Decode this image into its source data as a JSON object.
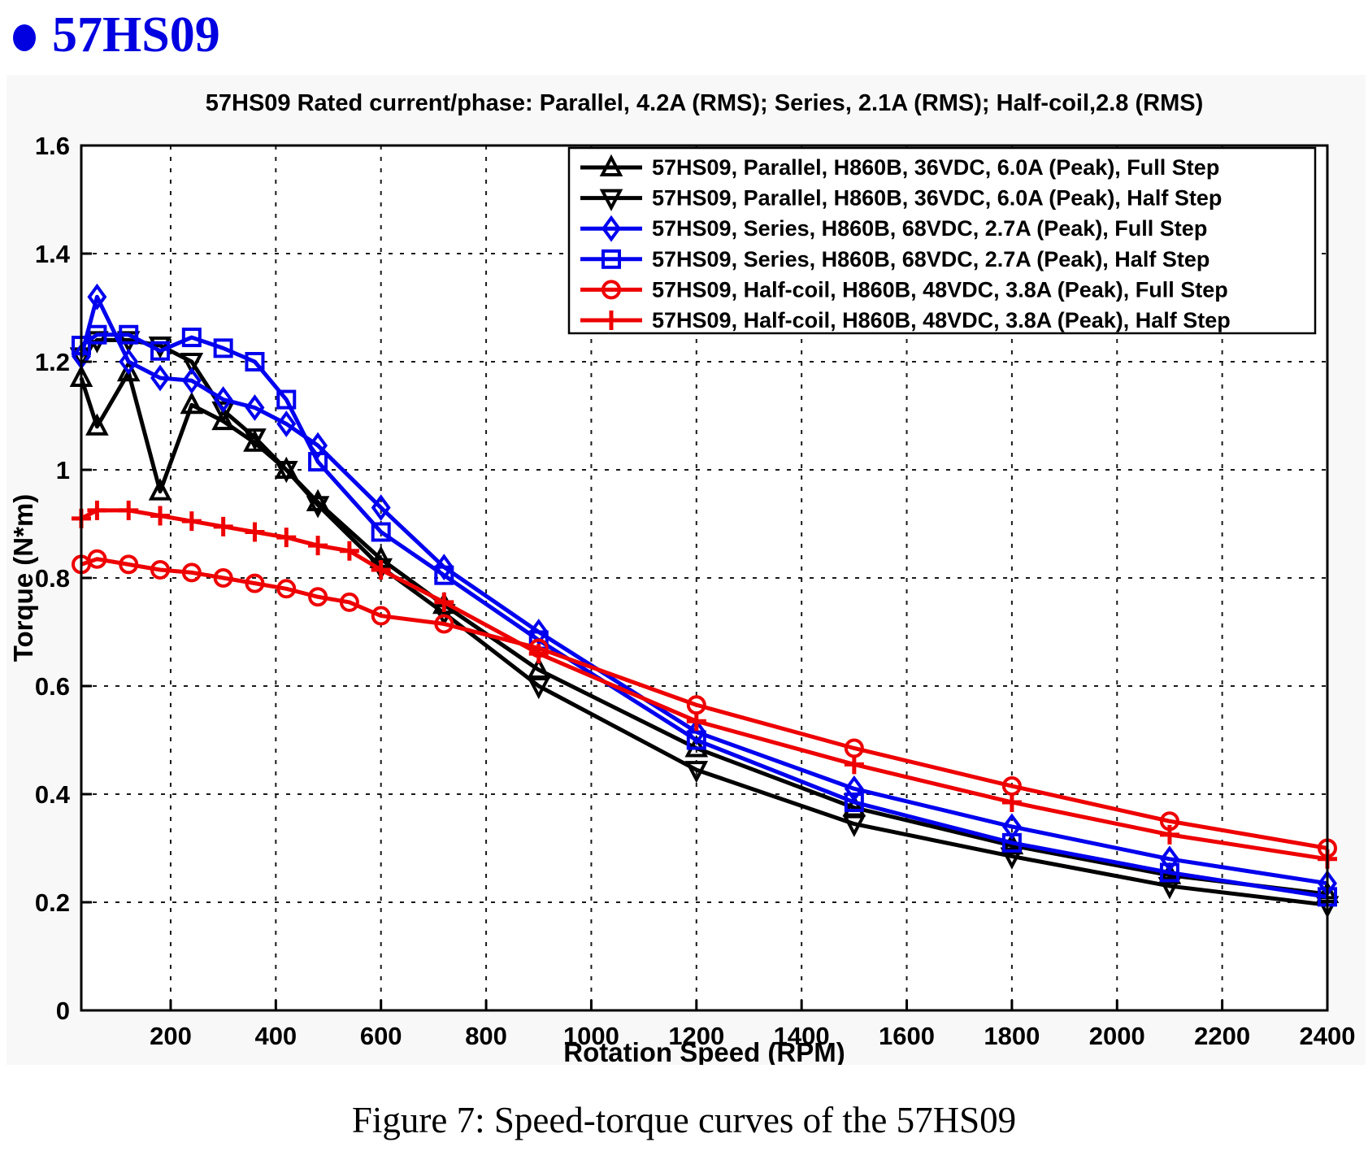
{
  "page": {
    "heading": {
      "text": "57HS09",
      "color": "#0000e0",
      "bullet_icon": "blue-dot"
    },
    "caption": "Figure 7: Speed-torque curves of the 57HS09",
    "background": "#ffffff"
  },
  "chart_data": {
    "type": "line",
    "title": "57HS09 Rated current/phase: Parallel, 4.2A (RMS); Series, 2.1A (RMS); Half-coil,2.8 (RMS)",
    "xlabel": "Rotation Speed (RPM)",
    "ylabel": "Torque (N*m)",
    "xlim": [
      30,
      2400
    ],
    "ylim": [
      0,
      1.6
    ],
    "xticks": [
      200,
      400,
      600,
      800,
      1000,
      1200,
      1400,
      1600,
      1800,
      2000,
      2200,
      2400
    ],
    "yticks": [
      0,
      0.2,
      0.4,
      0.6,
      0.8,
      1,
      1.2,
      1.4,
      1.6
    ],
    "ytick_labels": [
      "0",
      "0.2",
      "0.4",
      "0.6",
      "0.8",
      "1",
      "1.2",
      "1.4",
      "1.6"
    ],
    "grid": true,
    "grid_style": "dashed",
    "legend_position": "top-right",
    "plot_background": "#ffffff",
    "figure_background": "#f8f8f8",
    "colors": {
      "black": "#000000",
      "blue": "#0000ee",
      "red": "#ee0000"
    },
    "series": [
      {
        "name": "57HS09, Parallel, H860B, 36VDC, 6.0A (Peak), Full Step",
        "color": "#000000",
        "marker": "triangle-up",
        "x": [
          30,
          60,
          120,
          180,
          240,
          300,
          360,
          420,
          480,
          600,
          720,
          900,
          1200,
          1500,
          1800,
          2100,
          2400
        ],
        "y": [
          1.17,
          1.08,
          1.18,
          0.96,
          1.12,
          1.09,
          1.05,
          1.0,
          0.94,
          0.835,
          0.75,
          0.63,
          0.485,
          0.375,
          0.305,
          0.25,
          0.215
        ]
      },
      {
        "name": "57HS09, Parallel, H860B, 36VDC, 6.0A (Peak), Half Step",
        "color": "#000000",
        "marker": "triangle-down",
        "x": [
          30,
          60,
          120,
          180,
          240,
          300,
          360,
          420,
          480,
          600,
          720,
          900,
          1200,
          1500,
          1800,
          2100,
          2400
        ],
        "y": [
          1.21,
          1.24,
          1.24,
          1.23,
          1.2,
          1.11,
          1.06,
          1.0,
          0.935,
          0.82,
          0.735,
          0.6,
          0.445,
          0.345,
          0.285,
          0.23,
          0.195
        ]
      },
      {
        "name": "57HS09, Series, H860B, 68VDC, 2.7A (Peak), Full Step",
        "color": "#0000ee",
        "marker": "diamond",
        "x": [
          30,
          60,
          120,
          180,
          240,
          300,
          360,
          420,
          480,
          600,
          720,
          900,
          1200,
          1500,
          1800,
          2100,
          2400
        ],
        "y": [
          1.21,
          1.32,
          1.2,
          1.17,
          1.165,
          1.13,
          1.115,
          1.085,
          1.045,
          0.93,
          0.82,
          0.7,
          0.515,
          0.41,
          0.34,
          0.28,
          0.235
        ]
      },
      {
        "name": "57HS09, Series, H860B, 68VDC, 2.7A (Peak), Half Step",
        "color": "#0000ee",
        "marker": "square",
        "x": [
          30,
          60,
          120,
          180,
          240,
          300,
          360,
          420,
          480,
          600,
          720,
          900,
          1200,
          1500,
          1800,
          2100,
          2400
        ],
        "y": [
          1.23,
          1.25,
          1.25,
          1.22,
          1.245,
          1.225,
          1.2,
          1.13,
          1.015,
          0.885,
          0.805,
          0.685,
          0.5,
          0.385,
          0.31,
          0.255,
          0.21
        ]
      },
      {
        "name": "57HS09, Half-coil, H860B, 48VDC, 3.8A (Peak), Full Step",
        "color": "#ee0000",
        "marker": "circle",
        "x": [
          30,
          60,
          120,
          180,
          240,
          300,
          360,
          420,
          480,
          540,
          600,
          720,
          900,
          1200,
          1500,
          1800,
          2100,
          2400
        ],
        "y": [
          0.825,
          0.835,
          0.825,
          0.815,
          0.81,
          0.8,
          0.79,
          0.78,
          0.765,
          0.755,
          0.73,
          0.715,
          0.67,
          0.565,
          0.485,
          0.415,
          0.35,
          0.3
        ]
      },
      {
        "name": "57HS09, Half-coil, H860B, 48VDC, 3.8A (Peak), Half Step",
        "color": "#ee0000",
        "marker": "plus",
        "x": [
          30,
          60,
          120,
          180,
          240,
          300,
          360,
          420,
          480,
          540,
          600,
          720,
          900,
          1200,
          1500,
          1800,
          2100,
          2400
        ],
        "y": [
          0.91,
          0.925,
          0.925,
          0.915,
          0.905,
          0.895,
          0.885,
          0.875,
          0.86,
          0.85,
          0.815,
          0.755,
          0.66,
          0.535,
          0.455,
          0.385,
          0.325,
          0.28
        ]
      }
    ]
  }
}
